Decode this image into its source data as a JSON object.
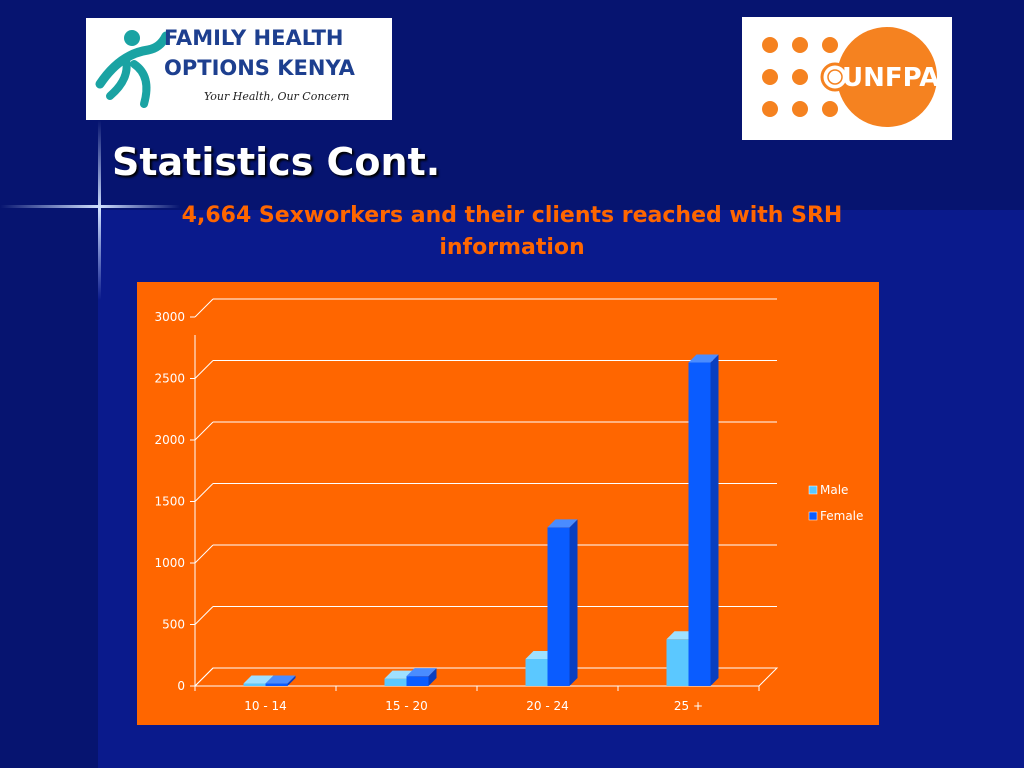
{
  "header": {
    "title": "Statistics Cont.",
    "subtitle": "4,664 Sexworkers and their clients reached with SRH information"
  },
  "logos": {
    "left": {
      "line1": "FAMILY HEALTH",
      "line2": "OPTIONS KENYA",
      "tagline": "Your Health, Our Concern"
    },
    "right": {
      "text": "UNFPA"
    }
  },
  "colors": {
    "background": "#0a1a8c",
    "chart_background": "#ff6600",
    "subtitle": "#ff6600",
    "male": "#5bc8ff",
    "female": "#0a5cff"
  },
  "chart_data": {
    "type": "bar",
    "categories": [
      "10 - 14",
      "15 - 20",
      "20 - 24",
      "25 +"
    ],
    "series": [
      {
        "name": "Male",
        "values": [
          20,
          60,
          220,
          380
        ]
      },
      {
        "name": "Female",
        "values": [
          20,
          80,
          1290,
          2630
        ]
      }
    ],
    "ylim": [
      0,
      3000
    ],
    "yticks": [
      0,
      500,
      1000,
      1500,
      2000,
      2500,
      3000
    ],
    "grid": true,
    "legend": "right",
    "style": "3d-clustered"
  }
}
